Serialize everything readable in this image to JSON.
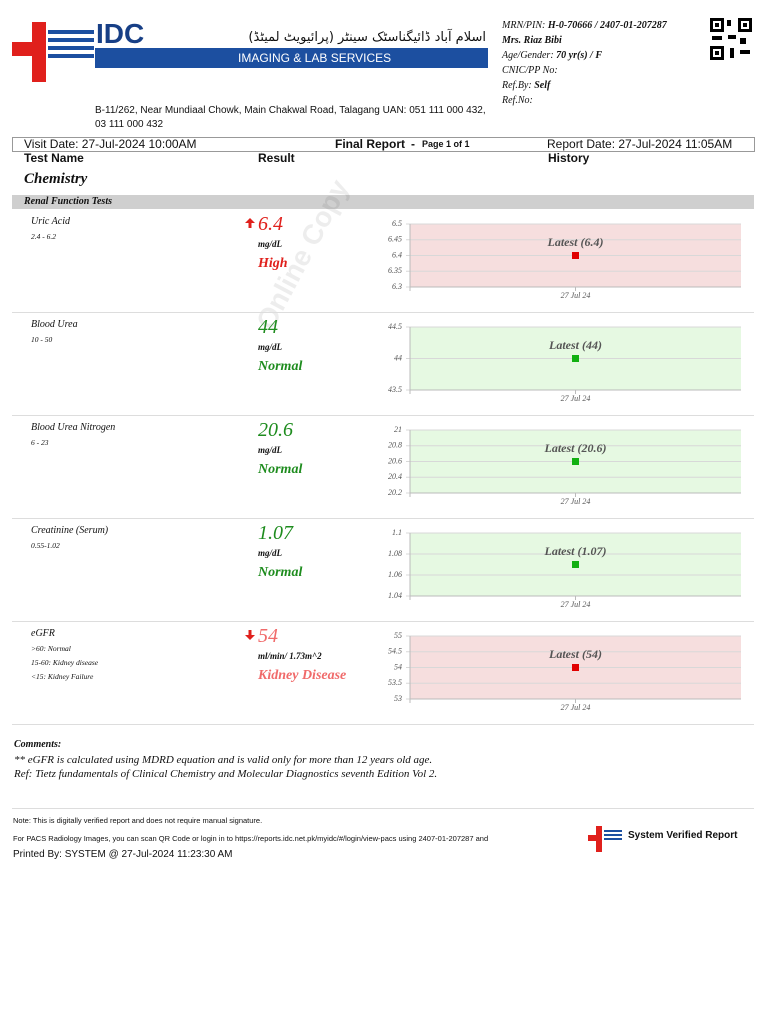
{
  "header": {
    "logo_text": "IDC",
    "urdu_name": "اسلام آباد ڈائیگناسٹک سینٹر (پرائیویٹ لمیٹڈ)",
    "banner": "IMAGING & LAB SERVICES",
    "address": "B-11/262, Near Mundiaal Chowk, Main Chakwal Road, Talagang UAN: 051 111 000 432, 03 111 000 432"
  },
  "patient": {
    "mrn_label": "MRN/PIN:",
    "mrn": "H-0-70666 / 2407-01-207287",
    "name": "Mrs. Riaz Bibi",
    "age_label": "Age/Gender:",
    "age": "70 yr(s) / F",
    "cnic_label": "CNIC/PP No:",
    "ref_by_label": "Ref.By:",
    "ref_by": "Self",
    "ref_no_label": "Ref.No:"
  },
  "report_bar": {
    "visit_date": "Visit Date: 27-Jul-2024 10:00AM",
    "title": "Final Report",
    "separator": "-",
    "page": "Page 1 of 1",
    "report_date": "Report Date: 27-Jul-2024 11:05AM"
  },
  "columns": [
    "Test Name",
    "Result",
    "History"
  ],
  "section": "Chemistry",
  "subsection": "Renal Function Tests",
  "watermark": "Online Copy",
  "tests": [
    {
      "name": "Uric Acid",
      "range": [
        "2.4 - 6.2"
      ],
      "result": 6.4,
      "unit": "mg/dL",
      "status": "High",
      "flag": "up",
      "color": "#e0201c",
      "chart_bg": "#f6dede",
      "point_color": "#e00000",
      "history": {
        "label": "Latest (6.4)",
        "date": "27 Jul 24",
        "ylim": [
          6.3,
          6.5
        ],
        "yticks": [
          6.3,
          6.35,
          6.4,
          6.45,
          6.5
        ]
      }
    },
    {
      "name": "Blood Urea",
      "range": [
        "10 - 50"
      ],
      "result": 44,
      "unit": "mg/dL",
      "status": "Normal",
      "color": "#1e8c1e",
      "chart_bg": "#e6f9e2",
      "point_color": "#12b012",
      "history": {
        "label": "Latest (44)",
        "date": "27 Jul 24",
        "ylim": [
          43.5,
          44.5
        ],
        "yticks": [
          43.5,
          44,
          44.5
        ]
      }
    },
    {
      "name": "Blood Urea Nitrogen",
      "range": [
        "6 - 23"
      ],
      "result": 20.6,
      "unit": "mg/dL",
      "status": "Normal",
      "color": "#1e8c1e",
      "chart_bg": "#e6f9e2",
      "point_color": "#12b012",
      "history": {
        "label": "Latest (20.6)",
        "date": "27 Jul 24",
        "ylim": [
          20.2,
          21
        ],
        "yticks": [
          20.2,
          20.4,
          20.6,
          20.8,
          21
        ]
      }
    },
    {
      "name": "Creatinine (Serum)",
      "range": [
        "0.55-1.02"
      ],
      "result": 1.07,
      "unit": "mg/dL",
      "status": "Normal",
      "color": "#1e8c1e",
      "chart_bg": "#e6f9e2",
      "point_color": "#12b012",
      "history": {
        "label": "Latest (1.07)",
        "date": "27 Jul 24",
        "ylim": [
          1.04,
          1.1
        ],
        "yticks": [
          1.04,
          1.06,
          1.08,
          1.1
        ]
      }
    },
    {
      "name": "eGFR",
      "range": [
        ">60: Normal",
        "15-60: Kidney disease",
        "<15: Kidney Failure"
      ],
      "result": 54,
      "unit": "ml/min/ 1.73m^2",
      "status": "Kidney Disease",
      "flag": "down",
      "color": "#f06a6a",
      "chart_bg": "#f6dede",
      "point_color": "#e00000",
      "history": {
        "label": "Latest (54)",
        "date": "27 Jul 24",
        "ylim": [
          53,
          55
        ],
        "yticks": [
          53,
          53.5,
          54,
          54.5,
          55
        ]
      }
    }
  ],
  "comments": {
    "title": "Comments:",
    "lines": [
      "** eGFR is calculated using MDRD equation and is valid only for more than 12 years old age.",
      "Ref: Tietz fundamentals of Clinical Chemistry and Molecular Diagnostics seventh Edition Vol 2."
    ]
  },
  "footer": {
    "note": "Note: This is digitally verified report and does not require manual signature.",
    "pacs": "For PACS Radiology Images, you can scan QR Code or login in to https://reports.idc.net.pk/myidc/#/login/view-pacs using 2407-01-207287 and",
    "verified": "System Verified Report",
    "printed": "Printed By: SYSTEM @ 27-Jul-2024 11:23:30 AM"
  }
}
